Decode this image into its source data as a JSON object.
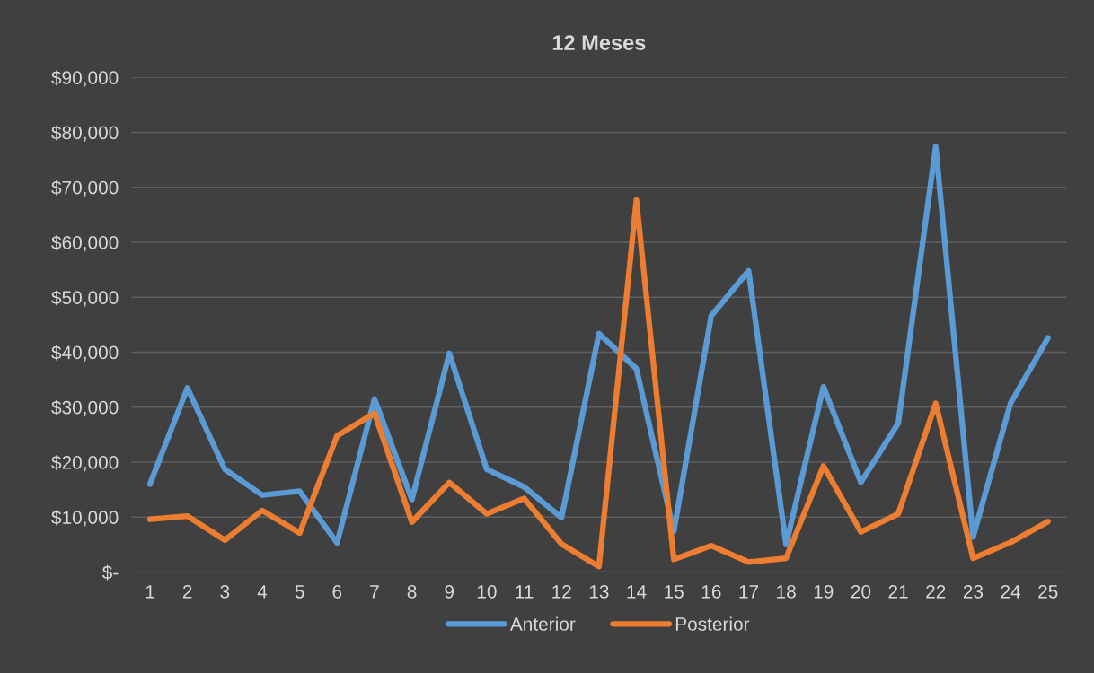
{
  "chart_data": {
    "type": "line",
    "title": "12 Meses",
    "categories": [
      "1",
      "2",
      "3",
      "4",
      "5",
      "6",
      "7",
      "8",
      "9",
      "10",
      "11",
      "12",
      "13",
      "14",
      "15",
      "16",
      "17",
      "18",
      "19",
      "20",
      "21",
      "22",
      "23",
      "24",
      "25"
    ],
    "series": [
      {
        "name": "Anterior",
        "color": "#5b9bd5",
        "values": [
          16000,
          33500,
          18700,
          14000,
          14700,
          5300,
          31500,
          13200,
          39800,
          18700,
          15500,
          9900,
          43400,
          37000,
          7400,
          46600,
          54800,
          5000,
          33700,
          16300,
          27100,
          77400,
          6400,
          30700,
          42600
        ]
      },
      {
        "name": "Posterior",
        "color": "#ed7d31",
        "values": [
          9600,
          10200,
          5800,
          11200,
          7100,
          24800,
          28900,
          9100,
          16300,
          10600,
          13400,
          5100,
          1000,
          67700,
          2300,
          4800,
          1800,
          2500,
          19300,
          7300,
          10600,
          30700,
          2500,
          5400,
          9200
        ]
      }
    ],
    "ylim": [
      0,
      90000
    ],
    "yticks": [
      {
        "value": 0,
        "label": "$-"
      },
      {
        "value": 10000,
        "label": "$10,000"
      },
      {
        "value": 20000,
        "label": "$20,000"
      },
      {
        "value": 30000,
        "label": "$30,000"
      },
      {
        "value": 40000,
        "label": "$40,000"
      },
      {
        "value": 50000,
        "label": "$50,000"
      },
      {
        "value": 60000,
        "label": "$60,000"
      },
      {
        "value": 70000,
        "label": "$70,000"
      },
      {
        "value": 80000,
        "label": "$80,000"
      },
      {
        "value": 90000,
        "label": "$90,000"
      }
    ],
    "grid": "y",
    "legend": "bottom",
    "marker": "none",
    "line_style": "solid"
  }
}
